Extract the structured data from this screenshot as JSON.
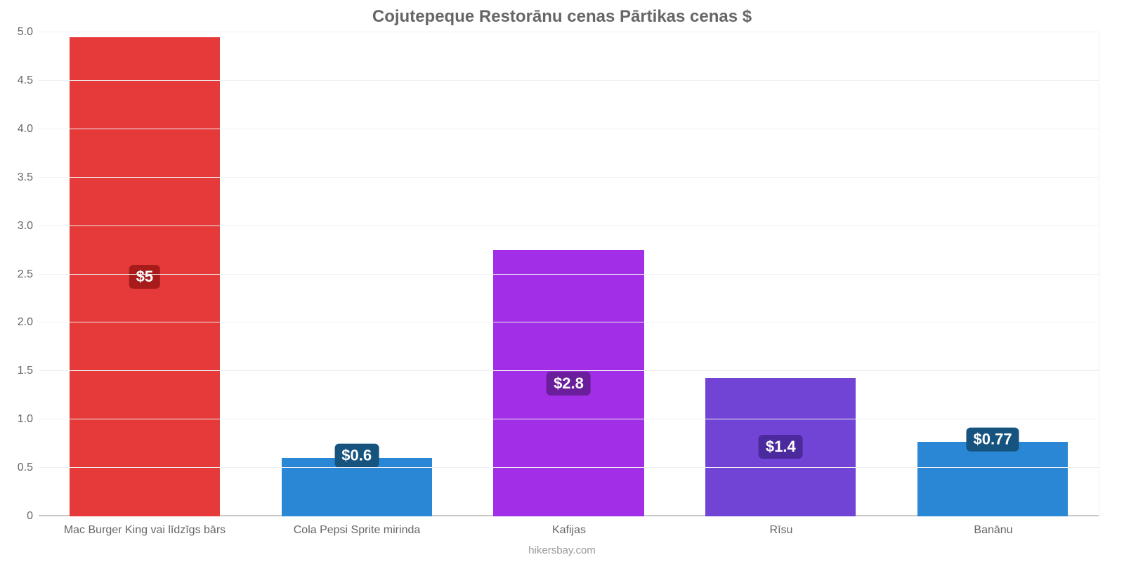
{
  "chart": {
    "type": "bar",
    "title": "Cojutepeque Restorānu cenas Pārtikas cenas $",
    "title_color": "#666666",
    "title_fontsize": 24,
    "background_color": "#ffffff",
    "grid_color": "#f0f0f0",
    "axis_baseline_color": "#c8c8c8",
    "label_color": "#666666",
    "source": "hikersbay.com",
    "source_color": "#999999",
    "ylim": [
      0,
      5.0
    ],
    "ytick_step": 0.5,
    "y_ticks": [
      "0",
      "0.5",
      "1.0",
      "1.5",
      "2.0",
      "2.5",
      "3.0",
      "3.5",
      "4.0",
      "4.5",
      "5.0"
    ],
    "tick_fontsize": 16,
    "bar_width_ratio": 0.71,
    "value_label_fontsize": 22,
    "categories": [
      "Mac Burger King vai līdzīgs bārs",
      "Cola Pepsi Sprite mirinda",
      "Kafijas",
      "Rīsu",
      "Banānu"
    ],
    "values": [
      4.95,
      0.6,
      2.75,
      1.43,
      0.77
    ],
    "value_labels": [
      "$5",
      "$0.6",
      "$2.8",
      "$1.4",
      "$0.77"
    ],
    "bar_colors": [
      "#e6393a",
      "#2a87d6",
      "#a22ee8",
      "#7244d6",
      "#2a87d6"
    ],
    "value_badge_bg": [
      "#a71b1b",
      "#16547f",
      "#6b1e9c",
      "#4a2a9c",
      "#16547f"
    ],
    "value_badge_text": "#ffffff",
    "value_badge_position": [
      "inside",
      "above",
      "inside",
      "inside",
      "above"
    ]
  }
}
